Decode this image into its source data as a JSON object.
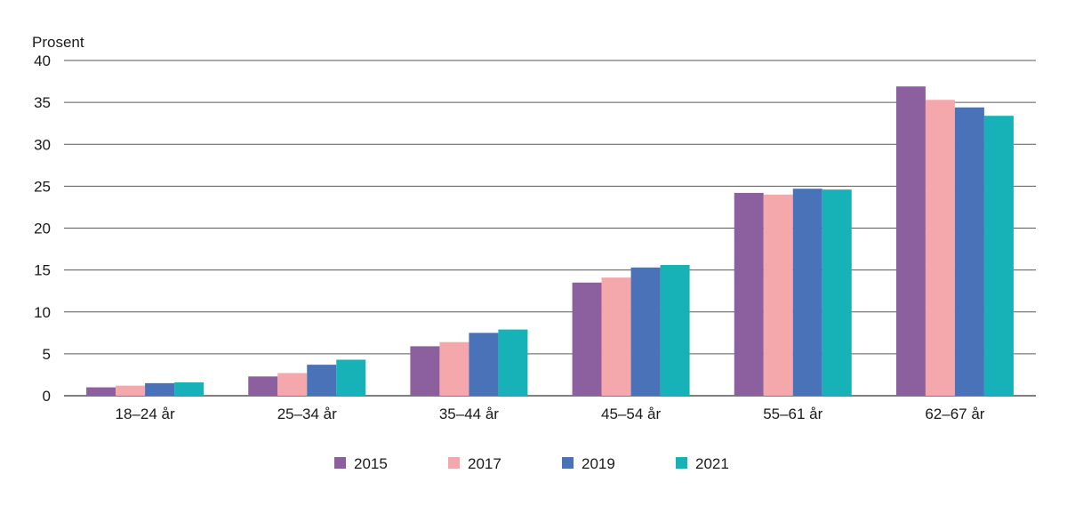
{
  "chart_data": {
    "type": "bar",
    "ylabel": "Prosent",
    "ylim": [
      0,
      40
    ],
    "yticks": [
      0,
      5,
      10,
      15,
      20,
      25,
      30,
      35,
      40
    ],
    "grid": true,
    "legend_position": "bottom",
    "categories": [
      "18–24 år",
      "25–34 år",
      "35–44 år",
      "45–54 år",
      "55–61 år",
      "62–67 år"
    ],
    "series": [
      {
        "name": "2015",
        "color": "#8c5f9f",
        "values": [
          1.0,
          2.3,
          5.9,
          13.5,
          24.2,
          36.9
        ]
      },
      {
        "name": "2017",
        "color": "#f4a8ab",
        "values": [
          1.2,
          2.7,
          6.4,
          14.1,
          24.0,
          35.3
        ]
      },
      {
        "name": "2019",
        "color": "#4a72b8",
        "values": [
          1.5,
          3.7,
          7.5,
          15.3,
          24.7,
          34.4
        ]
      },
      {
        "name": "2021",
        "color": "#17b2b8",
        "values": [
          1.6,
          4.3,
          7.9,
          15.6,
          24.6,
          33.4
        ]
      }
    ]
  }
}
